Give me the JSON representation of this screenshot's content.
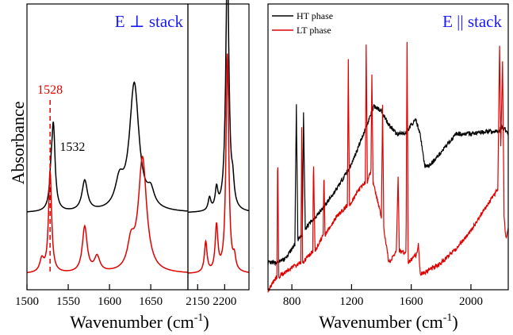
{
  "figure": {
    "ylabel": "Absorbance",
    "xlabel": "Wavenumber (cm",
    "xlabel_sup": "-1",
    "xlabel_close": ")",
    "colors": {
      "black": "#000000",
      "red": "#e00000",
      "blue": "#1a1aff"
    }
  },
  "chart_data": [
    {
      "type": "line",
      "title": "E ⊥  stack",
      "xlabel": "Wavenumber (cm-1)",
      "ylabel": "Absorbance",
      "xlim_left": [
        1500,
        1695
      ],
      "xlim_right": [
        2132,
        2245
      ],
      "x_ticks_left": [
        1500,
        1550,
        1600,
        1650
      ],
      "x_ticks_right": [
        2150,
        2200
      ],
      "annotations": [
        {
          "text": "1528",
          "x": 1528,
          "color": "#e00000",
          "dashed": true
        },
        {
          "text": "1532",
          "x": 1532,
          "color": "#000000"
        }
      ],
      "series": [
        {
          "color": "#000000",
          "baseline": 0.31,
          "peaks": [
            [
              1532,
              0.33,
              2.5
            ],
            [
              1529,
              0.08,
              2
            ],
            [
              1570,
              0.12,
              4
            ],
            [
              1630,
              0.5,
              7
            ],
            [
              1612,
              0.1,
              6
            ],
            [
              1650,
              0.06,
              5
            ],
            [
              2172,
              0.05,
              3
            ],
            [
              2185,
              0.08,
              3
            ],
            [
              2205,
              1.0,
              3.5
            ],
            [
              2215,
              0.08,
              3
            ]
          ]
        },
        {
          "color": "#e00000",
          "baseline": 0.06,
          "peaks": [
            [
              1528,
              0.4,
              2.2
            ],
            [
              1518,
              0.05,
              3
            ],
            [
              1570,
              0.18,
              3.5
            ],
            [
              1585,
              0.06,
              4
            ],
            [
              1640,
              0.45,
              6
            ],
            [
              1626,
              0.1,
              5
            ],
            [
              2165,
              0.12,
              3
            ],
            [
              2185,
              0.18,
              3
            ],
            [
              2205,
              0.86,
              3
            ],
            [
              2218,
              0.05,
              3
            ]
          ]
        }
      ]
    },
    {
      "type": "line",
      "title": "E || stack",
      "xlabel": "Wavenumber (cm-1)",
      "xlim": [
        640,
        2250
      ],
      "x_ticks": [
        800,
        1200,
        1600,
        2000
      ],
      "legend": {
        "position": "top-left"
      },
      "series": [
        {
          "name": "HT phase",
          "color": "#000000",
          "points": [
            [
              640,
              0.1
            ],
            [
              700,
              0.1
            ],
            [
              760,
              0.12
            ],
            [
              820,
              0.18
            ],
            [
              830,
              0.78
            ],
            [
              840,
              0.2
            ],
            [
              870,
              0.22
            ],
            [
              878,
              0.75
            ],
            [
              890,
              0.25
            ],
            [
              1000,
              0.33
            ],
            [
              1100,
              0.42
            ],
            [
              1200,
              0.53
            ],
            [
              1280,
              0.66
            ],
            [
              1350,
              0.78
            ],
            [
              1400,
              0.76
            ],
            [
              1450,
              0.7
            ],
            [
              1500,
              0.66
            ],
            [
              1560,
              0.66
            ],
            [
              1600,
              0.7
            ],
            [
              1630,
              0.72
            ],
            [
              1660,
              0.66
            ],
            [
              1690,
              0.52
            ],
            [
              1720,
              0.52
            ],
            [
              1800,
              0.58
            ],
            [
              1900,
              0.66
            ],
            [
              2000,
              0.66
            ],
            [
              2100,
              0.67
            ],
            [
              2190,
              0.67
            ],
            [
              2200,
              0.69
            ],
            [
              2230,
              0.68
            ],
            [
              2250,
              0.66
            ]
          ]
        },
        {
          "name": "LT phase",
          "color": "#e00000",
          "points": [
            [
              640,
              -0.02
            ],
            [
              700,
              0.04
            ],
            [
              705,
              0.6
            ],
            [
              712,
              0.04
            ],
            [
              800,
              0.08
            ],
            [
              860,
              0.1
            ],
            [
              866,
              0.68
            ],
            [
              872,
              0.1
            ],
            [
              940,
              0.15
            ],
            [
              945,
              0.55
            ],
            [
              955,
              0.15
            ],
            [
              1010,
              0.22
            ],
            [
              1015,
              0.5
            ],
            [
              1022,
              0.22
            ],
            [
              1100,
              0.3
            ],
            [
              1172,
              0.35
            ],
            [
              1178,
              0.98
            ],
            [
              1186,
              0.35
            ],
            [
              1230,
              0.4
            ],
            [
              1292,
              0.45
            ],
            [
              1298,
              1.05
            ],
            [
              1306,
              0.45
            ],
            [
              1330,
              0.5
            ],
            [
              1336,
              0.92
            ],
            [
              1344,
              0.45
            ],
            [
              1400,
              0.3
            ],
            [
              1408,
              0.78
            ],
            [
              1416,
              0.25
            ],
            [
              1450,
              0.1
            ],
            [
              1500,
              0.15
            ],
            [
              1512,
              0.48
            ],
            [
              1520,
              0.15
            ],
            [
              1565,
              0.14
            ],
            [
              1572,
              1.05
            ],
            [
              1580,
              0.1
            ],
            [
              1640,
              0.14
            ],
            [
              1648,
              0.18
            ],
            [
              1660,
              0.05
            ],
            [
              1700,
              0.06
            ],
            [
              1800,
              0.1
            ],
            [
              1900,
              0.16
            ],
            [
              2000,
              0.24
            ],
            [
              2100,
              0.34
            ],
            [
              2180,
              0.42
            ],
            [
              2192,
              1.05
            ],
            [
              2200,
              0.6
            ],
            [
              2212,
              0.98
            ],
            [
              2222,
              0.3
            ],
            [
              2235,
              0.2
            ],
            [
              2250,
              0.25
            ]
          ]
        }
      ]
    }
  ]
}
